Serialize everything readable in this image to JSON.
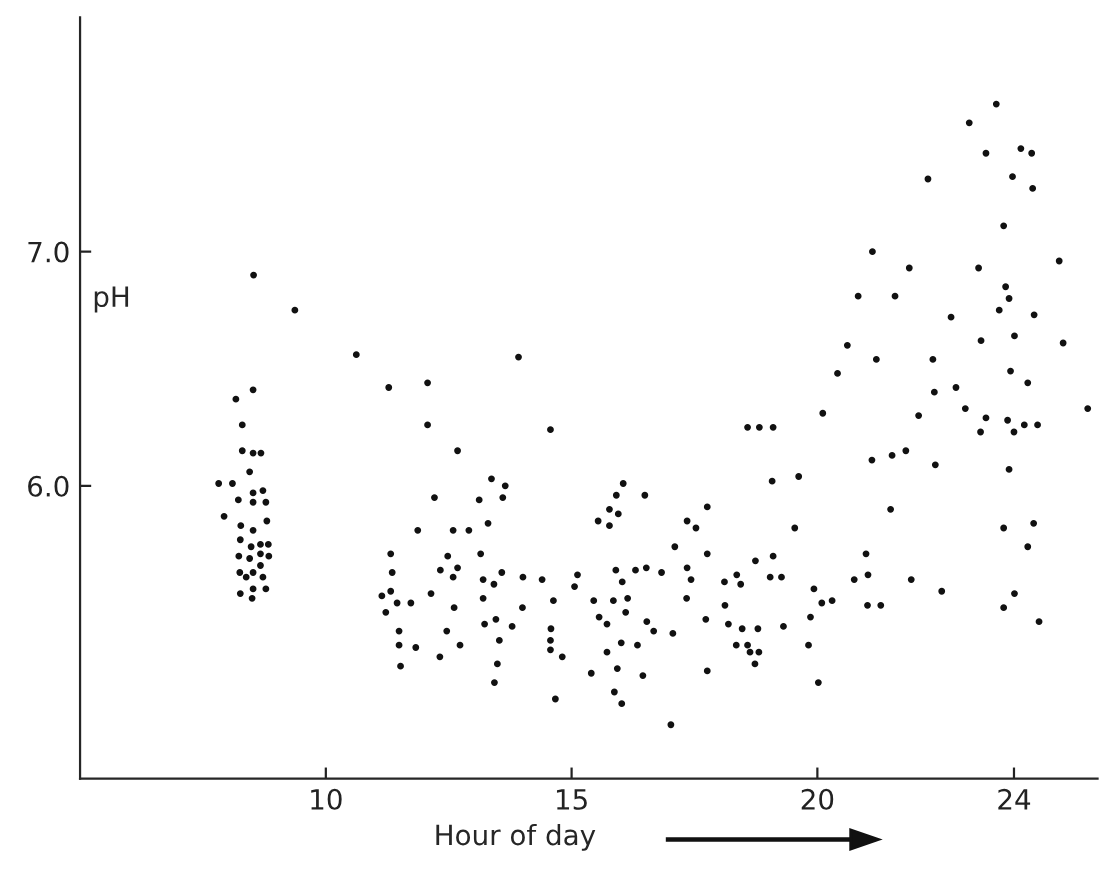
{
  "chart_data": {
    "type": "scatter",
    "xlabel": "Hour of day",
    "ylabel": "pH",
    "marker": "circle",
    "xlim": [
      5,
      25.7
    ],
    "ylim": [
      4.75,
      8.0
    ],
    "xticks": [
      10,
      15,
      20,
      24
    ],
    "yticks": [
      {
        "value": 6,
        "label": "6.0"
      },
      {
        "value": 7,
        "label": "7.0"
      }
    ],
    "series": [
      {
        "color": "#111111",
        "x": [
          8.53,
          9.37,
          10.62,
          8.17,
          8.52,
          8.3,
          8.3,
          8.52,
          8.68,
          8.45,
          7.82,
          8.1,
          8.22,
          8.52,
          8.72,
          8.52,
          8.78,
          7.93,
          8.8,
          8.27,
          8.52,
          8.26,
          8.48,
          8.67,
          8.83,
          8.23,
          8.45,
          8.67,
          8.84,
          8.67,
          8.25,
          8.38,
          8.52,
          8.72,
          8.52,
          8.78,
          8.26,
          8.5,
          13.92,
          11.28,
          12.07,
          12.07,
          14.57,
          12.68,
          13.37,
          13.65,
          12.21,
          13.12,
          13.6,
          13.3,
          11.87,
          12.59,
          12.91,
          11.32,
          12.48,
          13.15,
          11.35,
          12.33,
          12.68,
          12.59,
          13.58,
          14.01,
          14.4,
          15.12,
          13.2,
          13.42,
          11.32,
          12.14,
          11.14,
          11.45,
          11.73,
          13.2,
          14.63,
          11.22,
          12.61,
          14.0,
          15.06,
          15.45,
          13.46,
          13.23,
          13.79,
          11.49,
          12.46,
          14.58,
          13.53,
          14.57,
          11.49,
          11.83,
          12.73,
          14.57,
          12.32,
          14.81,
          11.52,
          13.49,
          13.43,
          15.4,
          14.67,
          18.58,
          18.82,
          19.1,
          20.11,
          16.05,
          15.91,
          16.49,
          19.08,
          19.62,
          15.77,
          15.95,
          15.54,
          15.77,
          17.76,
          17.35,
          17.53,
          19.54,
          17.1,
          17.76,
          18.74,
          19.1,
          15.9,
          16.3,
          16.52,
          16.83,
          17.35,
          16.03,
          17.43,
          18.11,
          18.36,
          18.44,
          19.04,
          19.27,
          15.85,
          16.14,
          17.34,
          20.3,
          18.12,
          19.93,
          20.09,
          16.1,
          15.56,
          15.72,
          16.53,
          17.73,
          18.19,
          18.47,
          18.79,
          19.31,
          19.86,
          16.67,
          17.06,
          15.72,
          16.01,
          16.34,
          18.35,
          18.58,
          18.63,
          18.81,
          19.82,
          18.73,
          15.93,
          16.45,
          17.76,
          20.02,
          15.87,
          16.02,
          17.02,
          23.79,
          21.12,
          21.87,
          23.28,
          24.92,
          23.83,
          23.9,
          20.83,
          21.58,
          22.72,
          23.7,
          24.41,
          23.33,
          24.01,
          25.0,
          20.61,
          21.2,
          22.35,
          20.41,
          23.93,
          24.28,
          22.38,
          22.82,
          22.06,
          23.01,
          23.43,
          23.87,
          23.32,
          24.0,
          24.21,
          24.48,
          25.5,
          21.11,
          21.52,
          21.8,
          22.4,
          23.9,
          21.49,
          23.79,
          24.4,
          24.28,
          20.99,
          20.75,
          21.03,
          21.91,
          21.02,
          21.29,
          22.53,
          24.01,
          23.79,
          24.51,
          23.64,
          23.09,
          23.43,
          24.14,
          24.36,
          22.25,
          23.97,
          24.38
        ],
        "values": [
          6.9,
          6.75,
          6.56,
          6.37,
          6.41,
          6.26,
          6.15,
          6.14,
          6.14,
          6.06,
          6.01,
          6.01,
          5.94,
          5.97,
          5.98,
          5.93,
          5.93,
          5.87,
          5.85,
          5.83,
          5.81,
          5.77,
          5.74,
          5.75,
          5.75,
          5.7,
          5.69,
          5.71,
          5.7,
          5.66,
          5.63,
          5.61,
          5.63,
          5.61,
          5.56,
          5.56,
          5.54,
          5.52,
          6.55,
          6.42,
          6.44,
          6.26,
          6.24,
          6.15,
          6.03,
          6.0,
          5.95,
          5.94,
          5.95,
          5.84,
          5.81,
          5.81,
          5.81,
          5.71,
          5.7,
          5.71,
          5.63,
          5.64,
          5.65,
          5.61,
          5.63,
          5.61,
          5.6,
          5.62,
          5.6,
          5.58,
          5.55,
          5.54,
          5.53,
          5.5,
          5.5,
          5.52,
          5.51,
          5.46,
          5.48,
          5.48,
          5.57,
          5.51,
          5.43,
          5.41,
          5.4,
          5.38,
          5.38,
          5.39,
          5.34,
          5.34,
          5.32,
          5.31,
          5.32,
          5.3,
          5.27,
          5.27,
          5.23,
          5.24,
          5.16,
          5.2,
          5.09,
          6.25,
          6.25,
          6.25,
          6.31,
          6.01,
          5.96,
          5.96,
          6.02,
          6.04,
          5.9,
          5.88,
          5.85,
          5.83,
          5.91,
          5.85,
          5.82,
          5.82,
          5.74,
          5.71,
          5.68,
          5.7,
          5.64,
          5.64,
          5.65,
          5.63,
          5.65,
          5.59,
          5.6,
          5.59,
          5.62,
          5.58,
          5.61,
          5.61,
          5.51,
          5.52,
          5.52,
          5.51,
          5.49,
          5.56,
          5.5,
          5.46,
          5.44,
          5.41,
          5.42,
          5.43,
          5.41,
          5.39,
          5.39,
          5.4,
          5.44,
          5.38,
          5.37,
          5.29,
          5.33,
          5.32,
          5.32,
          5.32,
          5.29,
          5.29,
          5.32,
          5.24,
          5.22,
          5.19,
          5.21,
          5.16,
          5.12,
          5.07,
          4.98,
          7.11,
          7.0,
          6.93,
          6.93,
          6.96,
          6.85,
          6.8,
          6.81,
          6.81,
          6.72,
          6.75,
          6.73,
          6.62,
          6.64,
          6.61,
          6.6,
          6.54,
          6.54,
          6.48,
          6.49,
          6.44,
          6.4,
          6.42,
          6.3,
          6.33,
          6.29,
          6.28,
          6.23,
          6.23,
          6.26,
          6.26,
          6.33,
          6.11,
          6.13,
          6.15,
          6.09,
          6.07,
          5.9,
          5.82,
          5.84,
          5.74,
          5.71,
          5.6,
          5.62,
          5.6,
          5.49,
          5.49,
          5.55,
          5.54,
          5.48,
          5.42,
          7.63,
          7.55,
          7.42,
          7.44,
          7.42,
          7.31,
          7.32,
          7.27
        ]
      }
    ]
  }
}
